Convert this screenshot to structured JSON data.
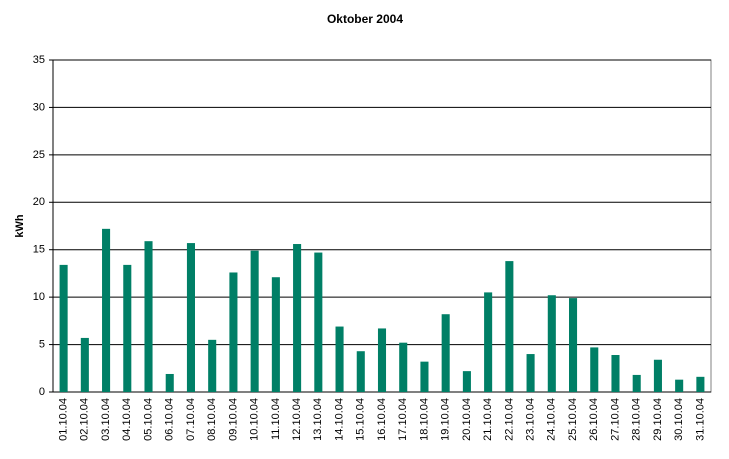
{
  "chart_data": {
    "type": "bar",
    "title": "Oktober 2004",
    "y_label": "kWh",
    "categories": [
      "01.10.04",
      "02.10.04",
      "03.10.04",
      "04.10.04",
      "05.10.04",
      "06.10.04",
      "07.10.04",
      "08.10.04",
      "09.10.04",
      "10.10.04",
      "11.10.04",
      "12.10.04",
      "13.10.04",
      "14.10.04",
      "15.10.04",
      "16.10.04",
      "17.10.04",
      "18.10.04",
      "19.10.04",
      "20.10.04",
      "21.10.04",
      "22.10.04",
      "23.10.04",
      "24.10.04",
      "25.10.04",
      "26.10.04",
      "27.10.04",
      "28.10.04",
      "29.10.04",
      "30.10.04",
      "31.10.04"
    ],
    "values": [
      13.4,
      5.7,
      17.2,
      13.4,
      15.9,
      1.9,
      15.7,
      5.5,
      12.6,
      14.9,
      12.1,
      15.6,
      14.7,
      6.9,
      4.3,
      6.7,
      5.2,
      3.2,
      8.2,
      2.2,
      10.5,
      13.8,
      4.0,
      10.2,
      9.9,
      4.7,
      3.9,
      1.8,
      3.4,
      1.3,
      1.6
    ],
    "color": "#007f66",
    "ylim": [
      0,
      35
    ],
    "yticks": [
      0,
      5,
      10,
      15,
      20,
      25,
      30,
      35
    ],
    "grid": true
  }
}
